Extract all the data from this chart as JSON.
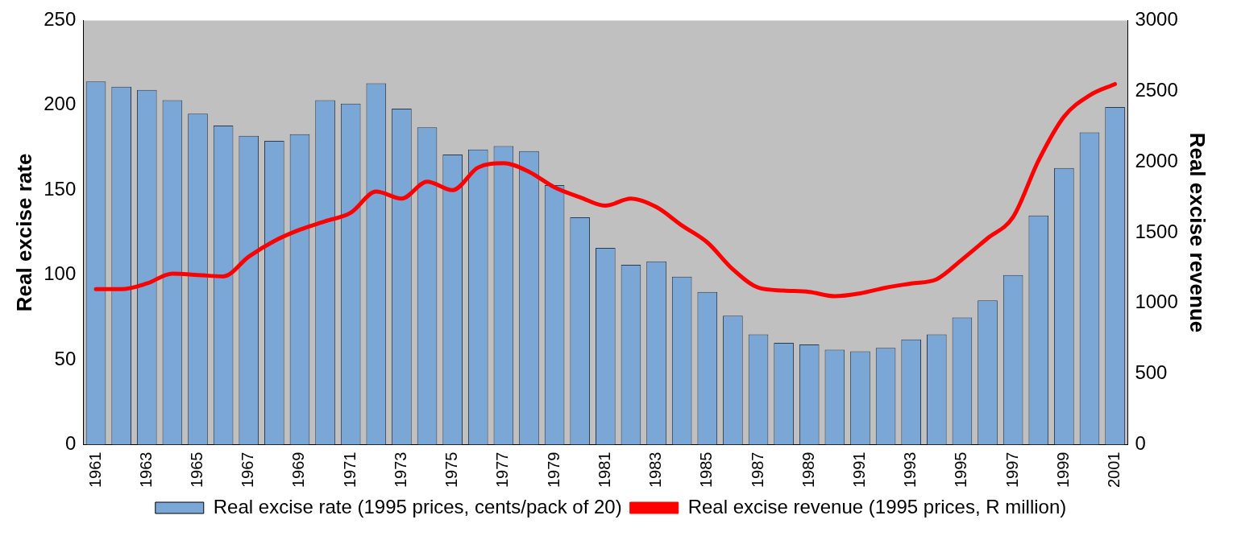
{
  "chart_data": {
    "type": "bar",
    "categories": [
      "1961",
      null,
      "1963",
      null,
      "1965",
      null,
      "1967",
      null,
      "1969",
      null,
      "1971",
      null,
      "1973",
      null,
      "1975",
      null,
      "1977",
      null,
      "1979",
      null,
      "1981",
      null,
      "1983",
      null,
      "1985",
      null,
      "1987",
      null,
      "1989",
      null,
      "1991",
      null,
      "1993",
      null,
      "1995",
      null,
      "1997",
      null,
      "1999",
      null,
      "2001"
    ],
    "series": [
      {
        "name": "Real excise rate (1995 prices, cents/pack of 20)",
        "color": "#7aa7d6",
        "values": [
          214,
          211,
          209,
          203,
          195,
          188,
          182,
          179,
          183,
          203,
          201,
          213,
          198,
          187,
          171,
          174,
          176,
          173,
          153,
          134,
          116,
          106,
          108,
          99,
          90,
          76,
          65,
          60,
          59,
          56,
          55,
          57,
          62,
          65,
          75,
          85,
          100,
          135,
          163,
          184,
          199
        ]
      },
      {
        "name": "Real excise revenue (1995 prices, R million)",
        "type": "line",
        "axis": "y2",
        "color": "#ff0000",
        "values": [
          1100,
          1100,
          1140,
          1210,
          1200,
          1190,
          1330,
          1440,
          1520,
          1580,
          1640,
          1790,
          1740,
          1860,
          1800,
          1960,
          1990,
          1930,
          1820,
          1750,
          1690,
          1740,
          1680,
          1550,
          1430,
          1240,
          1110,
          1090,
          1080,
          1050,
          1070,
          1110,
          1140,
          1170,
          1310,
          1460,
          1610,
          2010,
          2320,
          2470,
          2550
        ]
      }
    ],
    "ylabel": "Real excise rate",
    "y2label": "Real excise revenue",
    "ylim": [
      0,
      250
    ],
    "yticks": [
      0,
      50,
      100,
      150,
      200,
      250
    ],
    "y2lim": [
      0,
      3000
    ],
    "y2ticks": [
      0,
      500,
      1000,
      1500,
      2000,
      2500,
      3000
    ],
    "grid": false,
    "legend": "bottom",
    "marker": "none",
    "line_style": "solid"
  }
}
